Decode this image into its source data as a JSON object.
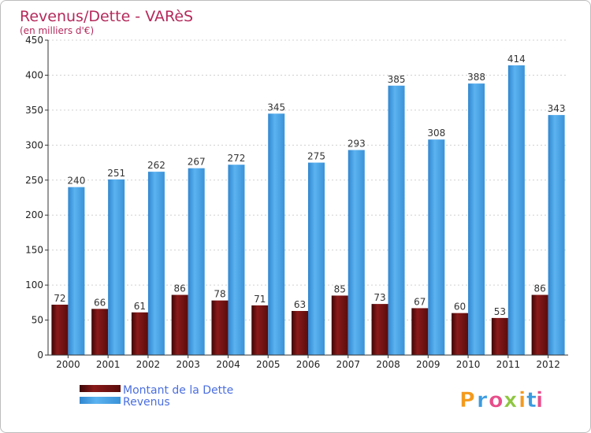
{
  "chart_data": {
    "type": "bar",
    "title": "Revenus/Dette - VARèS",
    "subtitle": "(en milliers d'€)",
    "categories": [
      "2000",
      "2001",
      "2002",
      "2003",
      "2004",
      "2005",
      "2006",
      "2007",
      "2008",
      "2009",
      "2010",
      "2011",
      "2012"
    ],
    "series": [
      {
        "name": "Montant de la Dette",
        "color": "#7a1414",
        "values": [
          72,
          66,
          61,
          86,
          78,
          71,
          63,
          85,
          73,
          67,
          60,
          53,
          86
        ]
      },
      {
        "name": "Revenus",
        "color": "#4aa3e8",
        "values": [
          240,
          251,
          262,
          267,
          272,
          345,
          275,
          293,
          385,
          308,
          388,
          414,
          343
        ]
      }
    ],
    "ylim": [
      0,
      450
    ],
    "yticks": [
      0,
      50,
      100,
      150,
      200,
      250,
      300,
      350,
      400,
      450
    ],
    "grid": true,
    "legend_placement": "bottom-left"
  },
  "logo": {
    "letters": [
      "P",
      "r",
      "o",
      "x",
      "i",
      "t",
      "i"
    ],
    "colors": [
      "#f39a1e",
      "#3b9be0",
      "#e84d8a",
      "#8dc63f",
      "#f39a1e",
      "#3b9be0",
      "#e84d8a"
    ]
  }
}
